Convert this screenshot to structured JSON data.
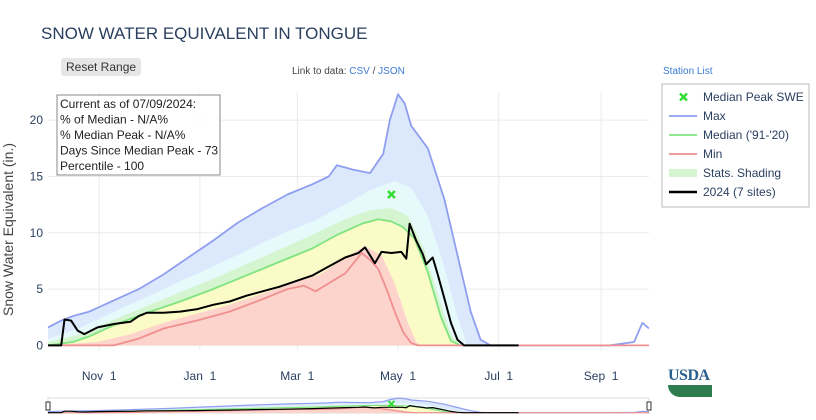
{
  "title": "SNOW WATER EQUIVALENT IN TONGUE",
  "reset_label": "Reset Range",
  "links": {
    "prefix": "Link to data: ",
    "csv": "CSV",
    "sep": " / ",
    "json": "JSON"
  },
  "station_list": "Station List",
  "logo": "USDA",
  "colors": {
    "max": "#8f9ff0",
    "median": "#7fe47f",
    "min": "#f08f8f",
    "shade_blue": "#dce8fb",
    "shade_lightblue": "#e6f9fb",
    "shade_green": "#d4f5cf",
    "shade_yellow": "#fbfbc8",
    "shade_red": "#fcd4cc",
    "current": "#000000",
    "peak": "#33dd33"
  },
  "chart_data": {
    "type": "line",
    "title": "SNOW WATER EQUIVALENT IN TONGUE",
    "ylabel": "Snow Water Equivalent (in.)",
    "xlabel": "",
    "ylim": [
      -0.5,
      22.5
    ],
    "xlim": [
      0,
      364
    ],
    "xticks": [
      {
        "day": 31,
        "label": "Nov 1"
      },
      {
        "day": 92,
        "label": "Jan 1"
      },
      {
        "day": 151,
        "label": "Mar 1"
      },
      {
        "day": 212,
        "label": "May 1"
      },
      {
        "day": 273,
        "label": "Jul 1"
      },
      {
        "day": 335,
        "label": "Sep 1"
      }
    ],
    "yticks": [
      0,
      5,
      10,
      15,
      20
    ],
    "info_box": [
      "Current as of 07/09/2024:",
      "% of Median - N/A%",
      "% Median Peak - N/A%",
      "Days Since Median Peak - 73",
      "Percentile - 100"
    ],
    "legend": [
      {
        "key": "peak",
        "label": "Median Peak SWE",
        "kind": "marker"
      },
      {
        "key": "max",
        "label": "Max",
        "kind": "line"
      },
      {
        "key": "median",
        "label": "Median ('91-'20)",
        "kind": "line"
      },
      {
        "key": "min",
        "label": "Min",
        "kind": "line"
      },
      {
        "key": "shade",
        "label": "Stats. Shading",
        "kind": "fill"
      },
      {
        "key": "current",
        "label": "2024 (7 sites)",
        "kind": "thick"
      }
    ],
    "median_peak": {
      "day": 208,
      "value": 13.4
    },
    "series": [
      {
        "name": "Max",
        "points": [
          [
            0,
            1.6
          ],
          [
            8,
            2.2
          ],
          [
            15,
            2.6
          ],
          [
            25,
            3.0
          ],
          [
            40,
            4.0
          ],
          [
            55,
            5.0
          ],
          [
            70,
            6.3
          ],
          [
            85,
            7.8
          ],
          [
            100,
            9.3
          ],
          [
            115,
            10.9
          ],
          [
            130,
            12.2
          ],
          [
            145,
            13.4
          ],
          [
            160,
            14.3
          ],
          [
            170,
            15.0
          ],
          [
            175,
            16.0
          ],
          [
            185,
            15.6
          ],
          [
            195,
            15.3
          ],
          [
            203,
            17.0
          ],
          [
            207,
            20.0
          ],
          [
            212,
            22.3
          ],
          [
            216,
            21.5
          ],
          [
            220,
            19.5
          ],
          [
            230,
            17.5
          ],
          [
            240,
            13.0
          ],
          [
            248,
            8.0
          ],
          [
            256,
            3.0
          ],
          [
            262,
            0.5
          ],
          [
            268,
            0
          ],
          [
            340,
            0
          ],
          [
            350,
            0.2
          ],
          [
            355,
            0.3
          ],
          [
            360,
            2.0
          ],
          [
            364,
            1.5
          ]
        ]
      },
      {
        "name": "Median ('91-'20)",
        "points": [
          [
            0,
            0
          ],
          [
            15,
            0.3
          ],
          [
            25,
            0.8
          ],
          [
            40,
            1.8
          ],
          [
            60,
            2.9
          ],
          [
            80,
            3.9
          ],
          [
            100,
            5.0
          ],
          [
            120,
            6.2
          ],
          [
            140,
            7.4
          ],
          [
            160,
            8.6
          ],
          [
            175,
            9.8
          ],
          [
            190,
            10.8
          ],
          [
            200,
            11.2
          ],
          [
            208,
            11.0
          ],
          [
            215,
            10.5
          ],
          [
            222,
            9.5
          ],
          [
            230,
            6.5
          ],
          [
            238,
            2.5
          ],
          [
            244,
            0.4
          ],
          [
            250,
            0
          ]
        ]
      },
      {
        "name": "Min",
        "points": [
          [
            0,
            0
          ],
          [
            40,
            0
          ],
          [
            55,
            0.6
          ],
          [
            70,
            1.5
          ],
          [
            90,
            2.2
          ],
          [
            110,
            3.0
          ],
          [
            130,
            4.1
          ],
          [
            145,
            5.0
          ],
          [
            155,
            5.3
          ],
          [
            162,
            4.8
          ],
          [
            170,
            5.5
          ],
          [
            180,
            6.4
          ],
          [
            185,
            7.3
          ],
          [
            190,
            8.2
          ],
          [
            195,
            7.6
          ],
          [
            200,
            6.8
          ],
          [
            205,
            5.0
          ],
          [
            210,
            3.0
          ],
          [
            215,
            1.2
          ],
          [
            220,
            0.2
          ],
          [
            224,
            0
          ],
          [
            364,
            0
          ]
        ]
      },
      {
        "name": "2024 (7 sites)",
        "points": [
          [
            0,
            0
          ],
          [
            8,
            0
          ],
          [
            10,
            2.3
          ],
          [
            14,
            2.2
          ],
          [
            18,
            1.3
          ],
          [
            22,
            1.0
          ],
          [
            30,
            1.6
          ],
          [
            40,
            1.9
          ],
          [
            50,
            2.1
          ],
          [
            55,
            2.6
          ],
          [
            60,
            2.9
          ],
          [
            70,
            2.9
          ],
          [
            80,
            3.0
          ],
          [
            90,
            3.2
          ],
          [
            100,
            3.6
          ],
          [
            110,
            3.9
          ],
          [
            120,
            4.4
          ],
          [
            130,
            4.8
          ],
          [
            140,
            5.2
          ],
          [
            150,
            5.7
          ],
          [
            160,
            6.2
          ],
          [
            170,
            7.0
          ],
          [
            180,
            7.8
          ],
          [
            188,
            8.2
          ],
          [
            192,
            8.7
          ],
          [
            195,
            8.0
          ],
          [
            198,
            7.3
          ],
          [
            202,
            8.3
          ],
          [
            208,
            8.2
          ],
          [
            214,
            8.3
          ],
          [
            217,
            7.7
          ],
          [
            219,
            10.8
          ],
          [
            223,
            9.3
          ],
          [
            227,
            8.1
          ],
          [
            229,
            7.2
          ],
          [
            233,
            7.8
          ],
          [
            236,
            6.3
          ],
          [
            240,
            4.2
          ],
          [
            244,
            2.0
          ],
          [
            248,
            0.5
          ],
          [
            252,
            0
          ],
          [
            285,
            0
          ]
        ]
      }
    ],
    "shading": [
      {
        "color": "shade_blue",
        "upper": [
          [
            0,
            1.6
          ],
          [
            8,
            2.2
          ],
          [
            15,
            2.6
          ],
          [
            25,
            3.0
          ],
          [
            40,
            4.0
          ],
          [
            55,
            5.0
          ],
          [
            70,
            6.3
          ],
          [
            85,
            7.8
          ],
          [
            100,
            9.3
          ],
          [
            115,
            10.9
          ],
          [
            130,
            12.2
          ],
          [
            145,
            13.4
          ],
          [
            160,
            14.3
          ],
          [
            170,
            15.0
          ],
          [
            175,
            16.0
          ],
          [
            185,
            15.6
          ],
          [
            195,
            15.3
          ],
          [
            203,
            17.0
          ],
          [
            207,
            20.0
          ],
          [
            212,
            22.3
          ],
          [
            216,
            21.5
          ],
          [
            220,
            19.5
          ],
          [
            230,
            17.5
          ],
          [
            240,
            13.0
          ],
          [
            248,
            8.0
          ],
          [
            256,
            3.0
          ],
          [
            262,
            0.5
          ],
          [
            268,
            0
          ]
        ]
      },
      {
        "color": "shade_lightblue",
        "upper": [
          [
            0,
            0.6
          ],
          [
            20,
            1.6
          ],
          [
            40,
            3.0
          ],
          [
            60,
            4.3
          ],
          [
            80,
            5.7
          ],
          [
            100,
            7.0
          ],
          [
            120,
            8.4
          ],
          [
            140,
            9.8
          ],
          [
            160,
            11.0
          ],
          [
            180,
            12.5
          ],
          [
            195,
            13.8
          ],
          [
            210,
            14.6
          ],
          [
            220,
            14.0
          ],
          [
            230,
            11.5
          ],
          [
            240,
            7.0
          ],
          [
            248,
            2.5
          ],
          [
            254,
            0
          ]
        ]
      },
      {
        "color": "shade_green",
        "upper": [
          [
            0,
            0.3
          ],
          [
            20,
            1.0
          ],
          [
            40,
            2.3
          ],
          [
            60,
            3.5
          ],
          [
            80,
            4.7
          ],
          [
            100,
            5.9
          ],
          [
            120,
            7.2
          ],
          [
            140,
            8.5
          ],
          [
            160,
            9.8
          ],
          [
            180,
            11.2
          ],
          [
            195,
            12.0
          ],
          [
            208,
            12.2
          ],
          [
            218,
            11.5
          ],
          [
            228,
            8.5
          ],
          [
            236,
            4.5
          ],
          [
            244,
            1.0
          ],
          [
            250,
            0
          ]
        ]
      },
      {
        "color": "shade_yellow",
        "upper": [
          [
            0,
            0
          ],
          [
            15,
            0.3
          ],
          [
            25,
            0.8
          ],
          [
            40,
            1.8
          ],
          [
            60,
            2.9
          ],
          [
            80,
            3.9
          ],
          [
            100,
            5.0
          ],
          [
            120,
            6.2
          ],
          [
            140,
            7.4
          ],
          [
            160,
            8.6
          ],
          [
            175,
            9.8
          ],
          [
            190,
            10.8
          ],
          [
            200,
            11.2
          ],
          [
            208,
            11.0
          ],
          [
            215,
            10.5
          ],
          [
            222,
            9.5
          ],
          [
            230,
            6.5
          ],
          [
            238,
            2.5
          ],
          [
            244,
            0.4
          ],
          [
            250,
            0
          ]
        ]
      },
      {
        "color": "shade_red",
        "upper": [
          [
            0,
            0
          ],
          [
            30,
            0.3
          ],
          [
            50,
            1.0
          ],
          [
            70,
            2.0
          ],
          [
            90,
            2.8
          ],
          [
            110,
            3.6
          ],
          [
            130,
            4.6
          ],
          [
            150,
            5.6
          ],
          [
            165,
            6.3
          ],
          [
            180,
            7.8
          ],
          [
            192,
            8.8
          ],
          [
            202,
            8.0
          ],
          [
            210,
            5.5
          ],
          [
            218,
            2.0
          ],
          [
            223,
            0.3
          ],
          [
            226,
            0
          ]
        ]
      }
    ]
  }
}
